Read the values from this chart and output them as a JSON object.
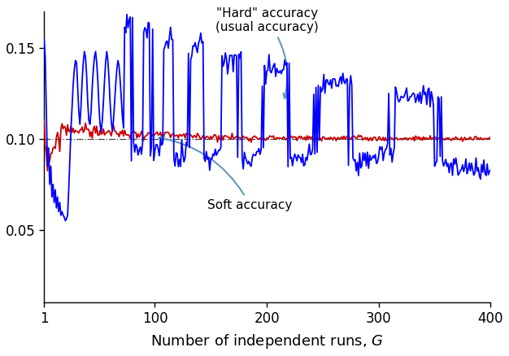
{
  "title": "",
  "xlabel": "Number of independent runs, $G$",
  "ylabel": "",
  "xlim": [
    1,
    400
  ],
  "ylim": [
    0.01,
    0.17
  ],
  "yticks": [
    0.05,
    0.1,
    0.15
  ],
  "xticks": [
    1,
    100,
    200,
    300,
    400
  ],
  "horizontal_line": 0.1,
  "true_accuracy": 0.1,
  "hard_label": "\"Hard\" accuracy\n(usual accuracy)",
  "soft_label": "Soft accuracy",
  "blue_color": "#0000FF",
  "red_color": "#CC0000",
  "dash_color": "#444444",
  "annotation_color": "#6699BB",
  "G_max": 400,
  "seed": 42
}
